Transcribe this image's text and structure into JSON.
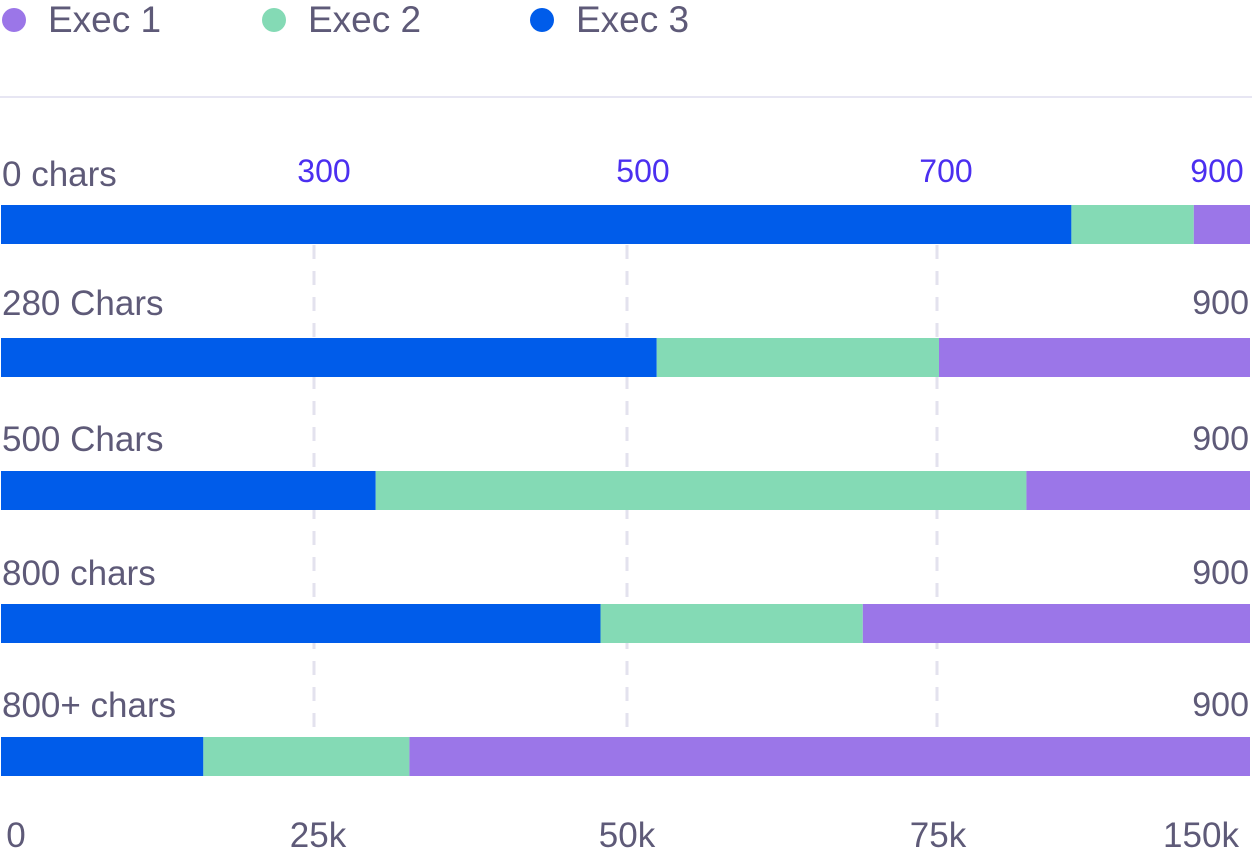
{
  "chart_data": {
    "type": "bar",
    "orientation": "horizontal",
    "stacked": true,
    "legend_position": "top-left",
    "series": [
      {
        "name": "Exec 1",
        "color": "#9b76e8"
      },
      {
        "name": "Exec 2",
        "color": "#84dab5"
      },
      {
        "name": "Exec 3",
        "color": "#005cea"
      }
    ],
    "categories": [
      {
        "label": "0 chars",
        "total_label": "900",
        "stack_fractions": {
          "Exec 3": 0.857,
          "Exec 2": 0.098,
          "Exec 1": 0.045
        }
      },
      {
        "label": "280 Chars",
        "total_label": "900",
        "stack_fractions": {
          "Exec 3": 0.525,
          "Exec 2": 0.226,
          "Exec 1": 0.249
        }
      },
      {
        "label": "500 Chars",
        "total_label": "900",
        "stack_fractions": {
          "Exec 3": 0.3,
          "Exec 2": 0.521,
          "Exec 1": 0.179
        }
      },
      {
        "label": "800 chars",
        "total_label": "900",
        "stack_fractions": {
          "Exec 3": 0.48,
          "Exec 2": 0.21,
          "Exec 1": 0.31
        }
      },
      {
        "label": "800+ chars",
        "total_label": "900",
        "stack_fractions": {
          "Exec 3": 0.162,
          "Exec 2": 0.165,
          "Exec 1": 0.673
        }
      }
    ],
    "top_axis": {
      "ticks": [
        "300",
        "500",
        "700",
        "900"
      ],
      "color": "#4b2ff0"
    },
    "bottom_axis": {
      "ticks": [
        "0",
        "25k",
        "50k",
        "75k",
        "150k"
      ]
    },
    "gridlines": "dashed vertical at 25k, 50k, 75k"
  }
}
